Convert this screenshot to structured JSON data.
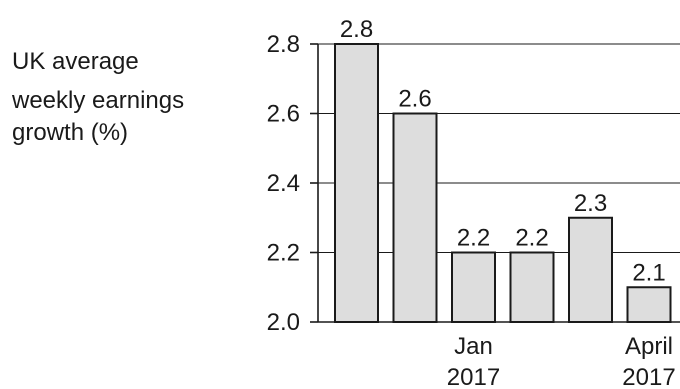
{
  "chart_data": {
    "type": "bar",
    "ylabel_lines": [
      "UK average",
      "weekly earnings",
      "growth (%)"
    ],
    "categories": [
      "",
      "",
      "Jan 2017",
      "",
      "",
      "April 2017"
    ],
    "category_lines": [
      [],
      [],
      [
        "Jan",
        "2017"
      ],
      [],
      [],
      [
        "April",
        "2017"
      ]
    ],
    "values": [
      2.8,
      2.6,
      2.2,
      2.2,
      2.3,
      2.1
    ],
    "data_labels": [
      "2.8",
      "2.6",
      "2.2",
      "2.2",
      "2.3",
      "2.1"
    ],
    "yticks": [
      2.0,
      2.2,
      2.4,
      2.6,
      2.8
    ],
    "ytick_labels": [
      "2.0",
      "2.2",
      "2.4",
      "2.6",
      "2.8"
    ],
    "ylim": [
      2.0,
      2.8
    ],
    "grid": true,
    "colors": {
      "bar_fill": "#dddddd",
      "bar_stroke": "#1a1a1a",
      "grid": "#1a1a1a"
    }
  }
}
